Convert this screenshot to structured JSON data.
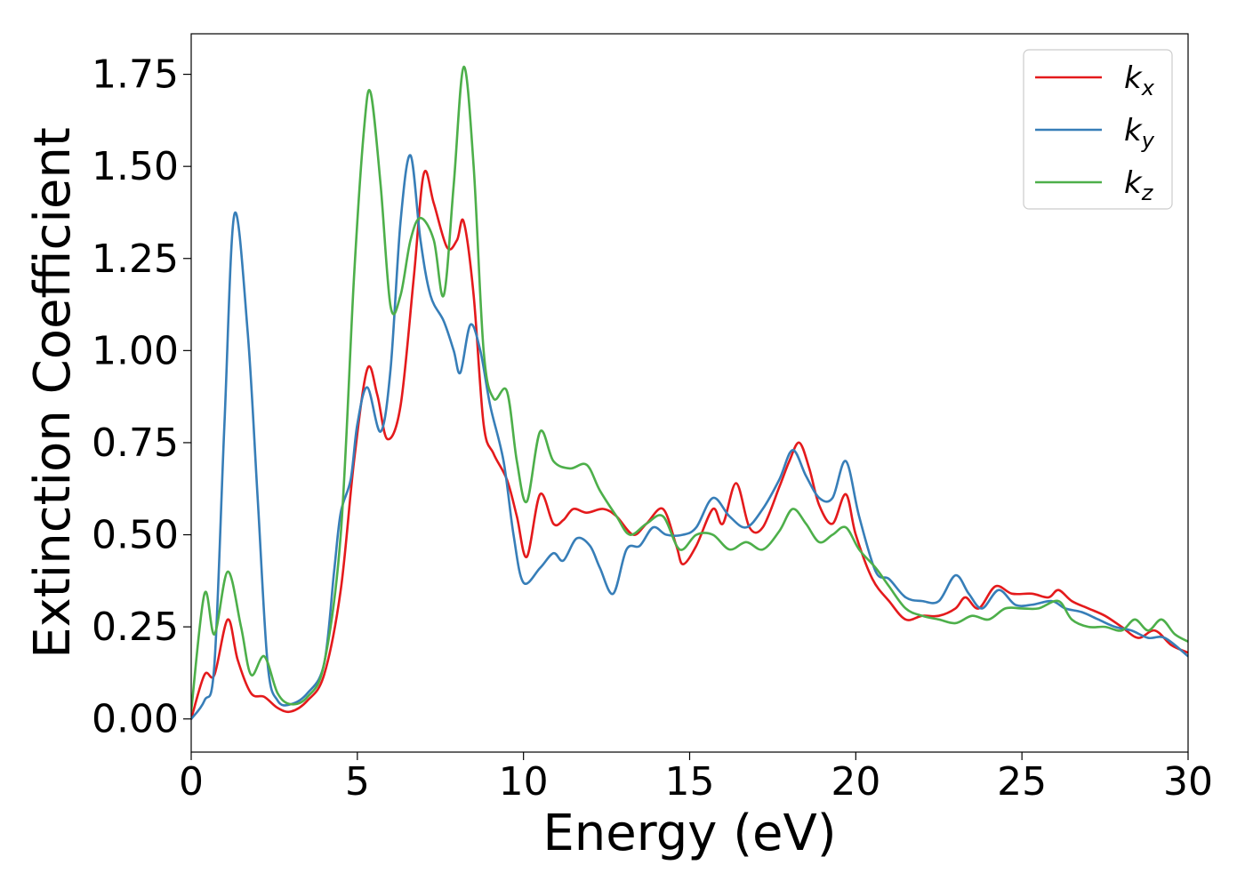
{
  "chart_data": {
    "type": "line",
    "title": "",
    "xlabel": "Energy (eV)",
    "ylabel": "Extinction Coefficient",
    "xlim": [
      0,
      30
    ],
    "ylim": [
      -0.09,
      1.86
    ],
    "xticks": [
      0,
      5,
      10,
      15,
      20,
      25,
      30
    ],
    "xtick_labels": [
      "0",
      "5",
      "10",
      "15",
      "20",
      "25",
      "30"
    ],
    "yticks": [
      0,
      0.25,
      0.5,
      0.75,
      1.0,
      1.25,
      1.5,
      1.75
    ],
    "ytick_labels": [
      "0.00",
      "0.25",
      "0.50",
      "0.75",
      "1.00",
      "1.25",
      "1.50",
      "1.75"
    ],
    "grid": false,
    "legend_position": "top-right",
    "series": [
      {
        "name": "k_x",
        "label_main": "k",
        "label_sub": "x",
        "color": "#e41a1c",
        "points": [
          [
            0,
            0.0
          ],
          [
            0.4,
            0.12
          ],
          [
            0.7,
            0.12
          ],
          [
            1.1,
            0.27
          ],
          [
            1.4,
            0.16
          ],
          [
            1.8,
            0.07
          ],
          [
            2.2,
            0.06
          ],
          [
            2.6,
            0.03
          ],
          [
            3.0,
            0.02
          ],
          [
            3.5,
            0.05
          ],
          [
            4.0,
            0.12
          ],
          [
            4.5,
            0.35
          ],
          [
            4.9,
            0.7
          ],
          [
            5.3,
            0.95
          ],
          [
            5.6,
            0.88
          ],
          [
            5.9,
            0.76
          ],
          [
            6.3,
            0.85
          ],
          [
            6.7,
            1.2
          ],
          [
            7.0,
            1.48
          ],
          [
            7.3,
            1.4
          ],
          [
            7.7,
            1.28
          ],
          [
            8.0,
            1.3
          ],
          [
            8.2,
            1.35
          ],
          [
            8.5,
            1.15
          ],
          [
            8.8,
            0.8
          ],
          [
            9.1,
            0.72
          ],
          [
            9.5,
            0.65
          ],
          [
            9.8,
            0.55
          ],
          [
            10.1,
            0.44
          ],
          [
            10.5,
            0.61
          ],
          [
            10.9,
            0.53
          ],
          [
            11.2,
            0.54
          ],
          [
            11.5,
            0.57
          ],
          [
            11.9,
            0.56
          ],
          [
            12.4,
            0.57
          ],
          [
            12.8,
            0.55
          ],
          [
            13.3,
            0.5
          ],
          [
            13.7,
            0.53
          ],
          [
            14.2,
            0.57
          ],
          [
            14.6,
            0.47
          ],
          [
            14.8,
            0.42
          ],
          [
            15.2,
            0.47
          ],
          [
            15.7,
            0.57
          ],
          [
            16.0,
            0.53
          ],
          [
            16.4,
            0.64
          ],
          [
            16.8,
            0.52
          ],
          [
            17.2,
            0.52
          ],
          [
            17.7,
            0.63
          ],
          [
            18.0,
            0.7
          ],
          [
            18.3,
            0.75
          ],
          [
            18.6,
            0.68
          ],
          [
            18.9,
            0.58
          ],
          [
            19.3,
            0.53
          ],
          [
            19.7,
            0.61
          ],
          [
            20.0,
            0.5
          ],
          [
            20.5,
            0.38
          ],
          [
            21.0,
            0.32
          ],
          [
            21.5,
            0.27
          ],
          [
            22.0,
            0.28
          ],
          [
            22.5,
            0.28
          ],
          [
            23.0,
            0.3
          ],
          [
            23.3,
            0.33
          ],
          [
            23.7,
            0.3
          ],
          [
            24.2,
            0.36
          ],
          [
            24.7,
            0.34
          ],
          [
            25.3,
            0.34
          ],
          [
            25.8,
            0.33
          ],
          [
            26.1,
            0.35
          ],
          [
            26.5,
            0.32
          ],
          [
            27.0,
            0.3
          ],
          [
            27.5,
            0.28
          ],
          [
            28.0,
            0.25
          ],
          [
            28.5,
            0.22
          ],
          [
            29.0,
            0.24
          ],
          [
            29.5,
            0.2
          ],
          [
            30.0,
            0.18
          ]
        ]
      },
      {
        "name": "k_y",
        "label_main": "k",
        "label_sub": "y",
        "color": "#377eb8",
        "points": [
          [
            0,
            0.0
          ],
          [
            0.4,
            0.05
          ],
          [
            0.7,
            0.15
          ],
          [
            1.0,
            0.8
          ],
          [
            1.3,
            1.37
          ],
          [
            1.7,
            1.05
          ],
          [
            2.0,
            0.6
          ],
          [
            2.3,
            0.15
          ],
          [
            2.6,
            0.05
          ],
          [
            3.0,
            0.04
          ],
          [
            3.5,
            0.07
          ],
          [
            4.0,
            0.15
          ],
          [
            4.3,
            0.4
          ],
          [
            4.5,
            0.56
          ],
          [
            4.8,
            0.65
          ],
          [
            5.0,
            0.8
          ],
          [
            5.3,
            0.9
          ],
          [
            5.7,
            0.78
          ],
          [
            6.0,
            0.95
          ],
          [
            6.3,
            1.35
          ],
          [
            6.6,
            1.53
          ],
          [
            6.9,
            1.3
          ],
          [
            7.2,
            1.15
          ],
          [
            7.6,
            1.08
          ],
          [
            7.9,
            1.0
          ],
          [
            8.1,
            0.94
          ],
          [
            8.4,
            1.07
          ],
          [
            8.7,
            1.0
          ],
          [
            9.0,
            0.85
          ],
          [
            9.4,
            0.7
          ],
          [
            9.7,
            0.5
          ],
          [
            10.0,
            0.37
          ],
          [
            10.5,
            0.41
          ],
          [
            10.9,
            0.45
          ],
          [
            11.2,
            0.43
          ],
          [
            11.6,
            0.49
          ],
          [
            12.0,
            0.47
          ],
          [
            12.3,
            0.41
          ],
          [
            12.7,
            0.34
          ],
          [
            13.1,
            0.46
          ],
          [
            13.5,
            0.47
          ],
          [
            13.9,
            0.52
          ],
          [
            14.3,
            0.5
          ],
          [
            14.8,
            0.5
          ],
          [
            15.2,
            0.52
          ],
          [
            15.7,
            0.6
          ],
          [
            16.2,
            0.55
          ],
          [
            16.7,
            0.52
          ],
          [
            17.2,
            0.57
          ],
          [
            17.7,
            0.65
          ],
          [
            18.1,
            0.73
          ],
          [
            18.5,
            0.66
          ],
          [
            18.9,
            0.6
          ],
          [
            19.3,
            0.6
          ],
          [
            19.7,
            0.7
          ],
          [
            20.1,
            0.55
          ],
          [
            20.6,
            0.4
          ],
          [
            21.0,
            0.38
          ],
          [
            21.5,
            0.33
          ],
          [
            22.0,
            0.32
          ],
          [
            22.5,
            0.32
          ],
          [
            23.0,
            0.39
          ],
          [
            23.4,
            0.34
          ],
          [
            23.8,
            0.3
          ],
          [
            24.3,
            0.35
          ],
          [
            24.8,
            0.31
          ],
          [
            25.3,
            0.31
          ],
          [
            25.9,
            0.32
          ],
          [
            26.3,
            0.3
          ],
          [
            26.8,
            0.29
          ],
          [
            27.3,
            0.27
          ],
          [
            27.8,
            0.25
          ],
          [
            28.3,
            0.24
          ],
          [
            28.8,
            0.22
          ],
          [
            29.3,
            0.22
          ],
          [
            30.0,
            0.17
          ]
        ]
      },
      {
        "name": "k_z",
        "label_main": "k",
        "label_sub": "z",
        "color": "#4daf4a",
        "points": [
          [
            0,
            0.02
          ],
          [
            0.4,
            0.34
          ],
          [
            0.7,
            0.23
          ],
          [
            1.1,
            0.4
          ],
          [
            1.5,
            0.25
          ],
          [
            1.8,
            0.12
          ],
          [
            2.2,
            0.17
          ],
          [
            2.6,
            0.07
          ],
          [
            3.0,
            0.04
          ],
          [
            3.5,
            0.06
          ],
          [
            4.0,
            0.15
          ],
          [
            4.5,
            0.5
          ],
          [
            4.9,
            1.2
          ],
          [
            5.2,
            1.6
          ],
          [
            5.4,
            1.7
          ],
          [
            5.7,
            1.45
          ],
          [
            6.0,
            1.12
          ],
          [
            6.3,
            1.15
          ],
          [
            6.6,
            1.3
          ],
          [
            6.9,
            1.36
          ],
          [
            7.3,
            1.3
          ],
          [
            7.6,
            1.15
          ],
          [
            7.9,
            1.45
          ],
          [
            8.2,
            1.77
          ],
          [
            8.5,
            1.5
          ],
          [
            8.8,
            1.0
          ],
          [
            9.1,
            0.87
          ],
          [
            9.5,
            0.89
          ],
          [
            9.8,
            0.7
          ],
          [
            10.1,
            0.59
          ],
          [
            10.5,
            0.78
          ],
          [
            10.9,
            0.7
          ],
          [
            11.4,
            0.68
          ],
          [
            11.9,
            0.69
          ],
          [
            12.3,
            0.62
          ],
          [
            12.8,
            0.55
          ],
          [
            13.2,
            0.5
          ],
          [
            13.7,
            0.53
          ],
          [
            14.2,
            0.55
          ],
          [
            14.7,
            0.46
          ],
          [
            15.2,
            0.5
          ],
          [
            15.7,
            0.5
          ],
          [
            16.2,
            0.46
          ],
          [
            16.7,
            0.48
          ],
          [
            17.2,
            0.46
          ],
          [
            17.7,
            0.51
          ],
          [
            18.1,
            0.57
          ],
          [
            18.5,
            0.53
          ],
          [
            18.9,
            0.48
          ],
          [
            19.3,
            0.5
          ],
          [
            19.7,
            0.52
          ],
          [
            20.1,
            0.46
          ],
          [
            20.6,
            0.41
          ],
          [
            21.0,
            0.36
          ],
          [
            21.5,
            0.3
          ],
          [
            22.0,
            0.28
          ],
          [
            22.5,
            0.27
          ],
          [
            23.0,
            0.26
          ],
          [
            23.5,
            0.28
          ],
          [
            24.0,
            0.27
          ],
          [
            24.5,
            0.3
          ],
          [
            25.0,
            0.3
          ],
          [
            25.5,
            0.3
          ],
          [
            26.1,
            0.32
          ],
          [
            26.5,
            0.27
          ],
          [
            27.0,
            0.25
          ],
          [
            27.5,
            0.25
          ],
          [
            28.0,
            0.24
          ],
          [
            28.4,
            0.27
          ],
          [
            28.8,
            0.24
          ],
          [
            29.2,
            0.27
          ],
          [
            29.6,
            0.23
          ],
          [
            30.0,
            0.21
          ]
        ]
      }
    ]
  }
}
